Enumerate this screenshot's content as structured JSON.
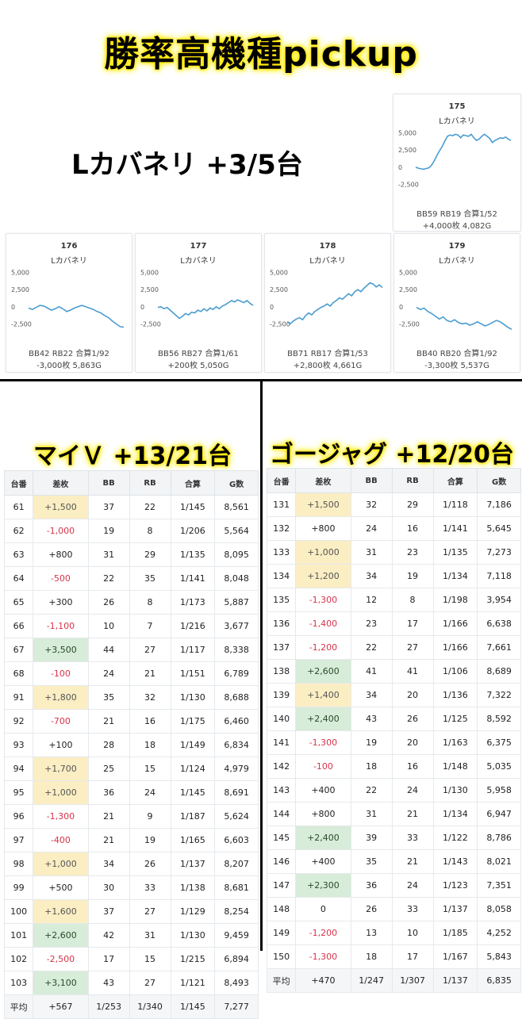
{
  "titles": {
    "main": "勝率高機種pickup",
    "kabaneri": "Lカバネリ +3/5台",
    "mai": "マイＶ +13/21台",
    "goji": "ゴージャグ +12/20台"
  },
  "colors": {
    "line": "#4a9cd0",
    "neg": "#d9334a",
    "highlight_yellow": "#fbeec3",
    "highlight_green": "#d7ecd9"
  },
  "kabaneri_cards": [
    {
      "num": "175",
      "name": "Lカバネリ",
      "stats": "BB59 RB19 合算1/52",
      "result": "+4,000枚 4,082G",
      "points": [
        0,
        -150,
        -250,
        -300,
        -200,
        -100,
        300,
        900,
        1700,
        2400,
        3000,
        3800,
        4500,
        4700,
        4600,
        4800,
        4700,
        4300,
        4700,
        4600,
        4500,
        4800,
        4300,
        3900,
        4100,
        4500,
        4800,
        4500,
        4200,
        3600,
        3900,
        4100,
        4300,
        4200,
        4400,
        4100,
        3900
      ]
    },
    {
      "num": "176",
      "name": "Lカバネリ",
      "stats": "BB42 RB22 合算1/92",
      "result": "-3,000枚 5,863G",
      "points": [
        -200,
        -400,
        -100,
        200,
        100,
        -200,
        -500,
        -300,
        0,
        -300,
        -700,
        -500,
        -200,
        0,
        200,
        0,
        -200,
        -400,
        -700,
        -900,
        -1300,
        -1600,
        -2100,
        -2500,
        -2900,
        -3000
      ]
    },
    {
      "num": "177",
      "name": "Lカバネリ",
      "stats": "BB56 RB27 合算1/61",
      "result": "+200枚 5,050G",
      "points": [
        -100,
        0,
        -300,
        -100,
        -500,
        -900,
        -1300,
        -1700,
        -1400,
        -1000,
        -1200,
        -800,
        -900,
        -500,
        -700,
        -300,
        -600,
        -200,
        -400,
        0,
        -300,
        100,
        300,
        600,
        900,
        700,
        1000,
        800,
        600,
        900,
        500,
        200
      ]
    },
    {
      "num": "178",
      "name": "Lカバネリ",
      "stats": "BB71 RB17 合算1/53",
      "result": "+2,800枚 4,661G",
      "points": [
        -2200,
        -2500,
        -2100,
        -1800,
        -1600,
        -1900,
        -1300,
        -900,
        -1200,
        -700,
        -400,
        -100,
        100,
        400,
        100,
        600,
        900,
        1300,
        1100,
        1500,
        1900,
        1600,
        2200,
        2500,
        2200,
        2700,
        3100,
        3500,
        3300,
        2900,
        3200,
        2800
      ]
    },
    {
      "num": "179",
      "name": "Lカバネリ",
      "stats": "BB40 RB20 合算1/92",
      "result": "-3,300枚 5,537G",
      "points": [
        -100,
        -400,
        -200,
        -700,
        -1000,
        -1400,
        -1800,
        -1500,
        -2000,
        -2200,
        -1900,
        -2300,
        -2500,
        -2400,
        -2700,
        -2500,
        -2200,
        -2500,
        -2800,
        -2600,
        -2300,
        -2000,
        -2200,
        -2600,
        -3000,
        -3300
      ]
    }
  ],
  "axis_labels": [
    "5,000",
    "2,500",
    "0",
    "-2,500"
  ],
  "mai_table": {
    "headers": [
      "台番",
      "差枚",
      "BB",
      "RB",
      "合算",
      "G数"
    ],
    "rows": [
      [
        "61",
        "+1,500",
        "37",
        "22",
        "1/145",
        "8,561"
      ],
      [
        "62",
        "-1,000",
        "19",
        "8",
        "1/206",
        "5,564"
      ],
      [
        "63",
        "+800",
        "31",
        "29",
        "1/135",
        "8,095"
      ],
      [
        "64",
        "-500",
        "22",
        "35",
        "1/141",
        "8,048"
      ],
      [
        "65",
        "+300",
        "26",
        "8",
        "1/173",
        "5,887"
      ],
      [
        "66",
        "-1,100",
        "10",
        "7",
        "1/216",
        "3,677"
      ],
      [
        "67",
        "+3,500",
        "44",
        "27",
        "1/117",
        "8,338"
      ],
      [
        "68",
        "-100",
        "24",
        "21",
        "1/151",
        "6,789"
      ],
      [
        "91",
        "+1,800",
        "35",
        "32",
        "1/130",
        "8,688"
      ],
      [
        "92",
        "-700",
        "21",
        "16",
        "1/175",
        "6,460"
      ],
      [
        "93",
        "+100",
        "28",
        "18",
        "1/149",
        "6,834"
      ],
      [
        "94",
        "+1,700",
        "25",
        "15",
        "1/124",
        "4,979"
      ],
      [
        "95",
        "+1,000",
        "36",
        "24",
        "1/145",
        "8,691"
      ],
      [
        "96",
        "-1,300",
        "21",
        "9",
        "1/187",
        "5,624"
      ],
      [
        "97",
        "-400",
        "21",
        "19",
        "1/165",
        "6,603"
      ],
      [
        "98",
        "+1,000",
        "34",
        "26",
        "1/137",
        "8,207"
      ],
      [
        "99",
        "+500",
        "30",
        "33",
        "1/138",
        "8,681"
      ],
      [
        "100",
        "+1,600",
        "37",
        "27",
        "1/129",
        "8,254"
      ],
      [
        "101",
        "+2,600",
        "42",
        "31",
        "1/130",
        "9,459"
      ],
      [
        "102",
        "-2,500",
        "17",
        "15",
        "1/215",
        "6,894"
      ],
      [
        "103",
        "+3,100",
        "43",
        "27",
        "1/121",
        "8,493"
      ]
    ],
    "avg": [
      "平均",
      "+567",
      "1/253",
      "1/340",
      "1/145",
      "7,277"
    ]
  },
  "goji_table": {
    "headers": [
      "台番",
      "差枚",
      "BB",
      "RB",
      "合算",
      "G数"
    ],
    "rows": [
      [
        "131",
        "+1,500",
        "32",
        "29",
        "1/118",
        "7,186"
      ],
      [
        "132",
        "+800",
        "24",
        "16",
        "1/141",
        "5,645"
      ],
      [
        "133",
        "+1,000",
        "31",
        "23",
        "1/135",
        "7,273"
      ],
      [
        "134",
        "+1,200",
        "34",
        "19",
        "1/134",
        "7,118"
      ],
      [
        "135",
        "-1,300",
        "12",
        "8",
        "1/198",
        "3,954"
      ],
      [
        "136",
        "-1,400",
        "23",
        "17",
        "1/166",
        "6,638"
      ],
      [
        "137",
        "-1,200",
        "22",
        "27",
        "1/166",
        "7,661"
      ],
      [
        "138",
        "+2,600",
        "41",
        "41",
        "1/106",
        "8,689"
      ],
      [
        "139",
        "+1,400",
        "34",
        "20",
        "1/136",
        "7,322"
      ],
      [
        "140",
        "+2,400",
        "43",
        "26",
        "1/125",
        "8,592"
      ],
      [
        "141",
        "-1,300",
        "19",
        "20",
        "1/163",
        "6,375"
      ],
      [
        "142",
        "-100",
        "18",
        "16",
        "1/148",
        "5,035"
      ],
      [
        "143",
        "+400",
        "22",
        "24",
        "1/130",
        "5,958"
      ],
      [
        "144",
        "+800",
        "31",
        "21",
        "1/134",
        "6,947"
      ],
      [
        "145",
        "+2,400",
        "39",
        "33",
        "1/122",
        "8,786"
      ],
      [
        "146",
        "+400",
        "35",
        "21",
        "1/143",
        "8,021"
      ],
      [
        "147",
        "+2,300",
        "36",
        "24",
        "1/123",
        "7,351"
      ],
      [
        "148",
        "0",
        "26",
        "33",
        "1/137",
        "8,058"
      ],
      [
        "149",
        "-1,200",
        "13",
        "10",
        "1/185",
        "4,252"
      ],
      [
        "150",
        "-1,300",
        "18",
        "17",
        "1/167",
        "5,843"
      ]
    ],
    "avg": [
      "平均",
      "+470",
      "1/247",
      "1/307",
      "1/137",
      "6,835"
    ]
  }
}
